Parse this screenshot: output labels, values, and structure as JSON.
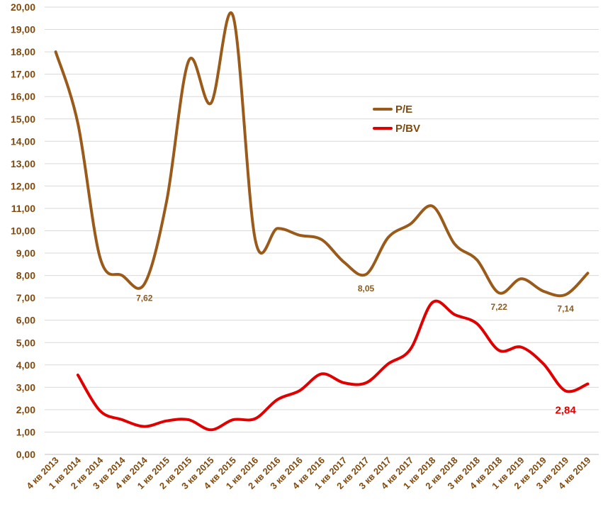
{
  "chart_data": {
    "type": "line",
    "categories": [
      "4 кв 2013",
      "1 кв 2014",
      "2 кв 2014",
      "3 кв 2014",
      "4 кв 2014",
      "1 кв 2015",
      "2 кв 2015",
      "3 кв 2015",
      "4 кв 2015",
      "1 кв 2016",
      "2 кв 2016",
      "3 кв 2016",
      "4 кв 2016",
      "1 кв 2017",
      "2 кв 2017",
      "3 кв 2017",
      "4 кв 2017",
      "1 кв 2018",
      "2 кв 2018",
      "3 кв 2018",
      "4 кв 2018",
      "1 кв 2019",
      "2 кв 2019",
      "3 кв 2019",
      "4 кв 2019"
    ],
    "ylim": [
      0,
      20
    ],
    "ytick_step": 1,
    "ytick_labels": [
      "0,00",
      "1,00",
      "2,00",
      "3,00",
      "4,00",
      "5,00",
      "6,00",
      "7,00",
      "8,00",
      "9,00",
      "10,00",
      "11,00",
      "12,00",
      "13,00",
      "14,00",
      "15,00",
      "16,00",
      "17,00",
      "18,00",
      "19,00",
      "20,00"
    ],
    "grid": true,
    "legend_position": "center-right",
    "series": [
      {
        "name": "P/E",
        "color": "#9a5a1a",
        "values": [
          18.0,
          14.8,
          8.8,
          8.0,
          7.62,
          11.3,
          17.6,
          15.7,
          19.6,
          9.6,
          10.1,
          9.8,
          9.6,
          8.6,
          8.05,
          9.7,
          10.3,
          11.1,
          9.4,
          8.7,
          7.22,
          7.85,
          7.3,
          7.14,
          8.1
        ],
        "point_labels": [
          {
            "index": 4,
            "text": "7,62"
          },
          {
            "index": 14,
            "text": "8,05"
          },
          {
            "index": 20,
            "text": "7,22"
          },
          {
            "index": 23,
            "text": "7,14"
          }
        ]
      },
      {
        "name": "P/BV",
        "color": "#e00000",
        "values": [
          null,
          3.55,
          1.95,
          1.55,
          1.25,
          1.5,
          1.55,
          1.1,
          1.55,
          1.6,
          2.45,
          2.85,
          3.6,
          3.2,
          3.2,
          4.05,
          4.7,
          6.8,
          6.25,
          5.85,
          4.65,
          4.8,
          4.05,
          2.84,
          3.15
        ],
        "point_labels": [
          {
            "index": 23,
            "text": "2,84"
          }
        ]
      }
    ]
  }
}
